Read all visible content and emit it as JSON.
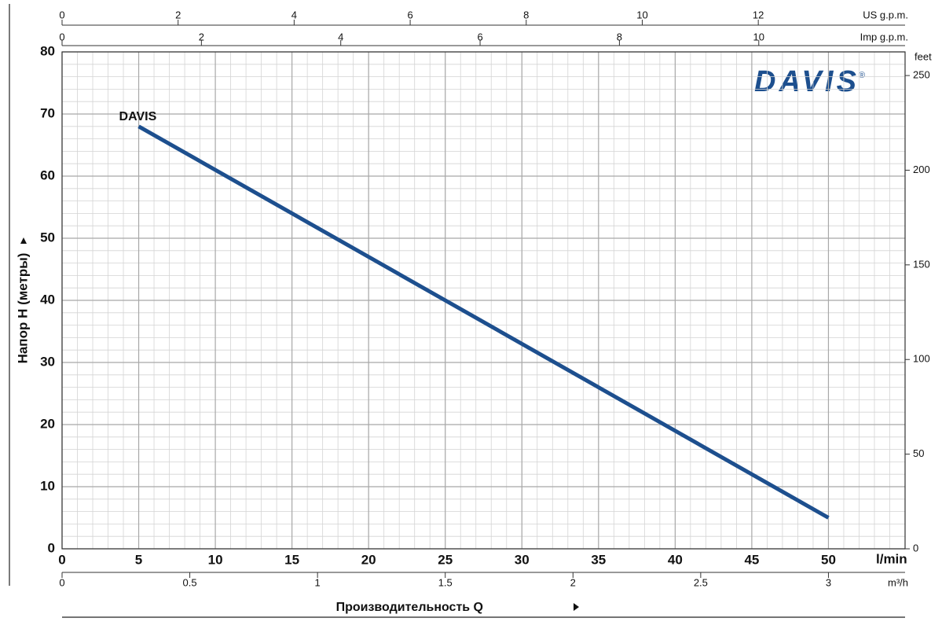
{
  "chart_data": {
    "type": "line",
    "y_label": "Напор H (метры)",
    "x_label": "Производительность Q",
    "x_unit": "l/min",
    "logo": "DAVIS",
    "logo_mark": "®",
    "xlim": [
      0,
      55
    ],
    "xticks": [
      0,
      5,
      10,
      15,
      20,
      25,
      30,
      35,
      40,
      45,
      50
    ],
    "ylim": [
      0,
      80
    ],
    "yticks": [
      0,
      10,
      20,
      30,
      40,
      50,
      60,
      70,
      80
    ],
    "grid": true,
    "minor_grid": {
      "x": 1,
      "y": 2
    },
    "series": [
      {
        "name": "DAVIS",
        "color": "#1d4f8e",
        "x": [
          5,
          50
        ],
        "values": [
          68,
          5
        ]
      }
    ],
    "secondary_axes": [
      {
        "position": "top",
        "label": "US g.p.m.",
        "lim": [
          0,
          14.53
        ],
        "ticks": [
          0,
          2,
          4,
          6,
          8,
          10,
          12
        ]
      },
      {
        "position": "top-inner",
        "label": "Imp g.p.m.",
        "lim": [
          0,
          12.1
        ],
        "ticks": [
          0,
          2,
          4,
          6,
          8,
          10
        ]
      },
      {
        "position": "right",
        "label": "feet",
        "lim": [
          0,
          262.5
        ],
        "ticks": [
          0,
          50,
          100,
          150,
          200,
          250
        ]
      },
      {
        "position": "bottom",
        "label": "m³/h",
        "lim": [
          0,
          3.3
        ],
        "ticks": [
          0,
          0.5,
          1,
          1.5,
          2,
          2.5,
          3
        ]
      }
    ]
  }
}
